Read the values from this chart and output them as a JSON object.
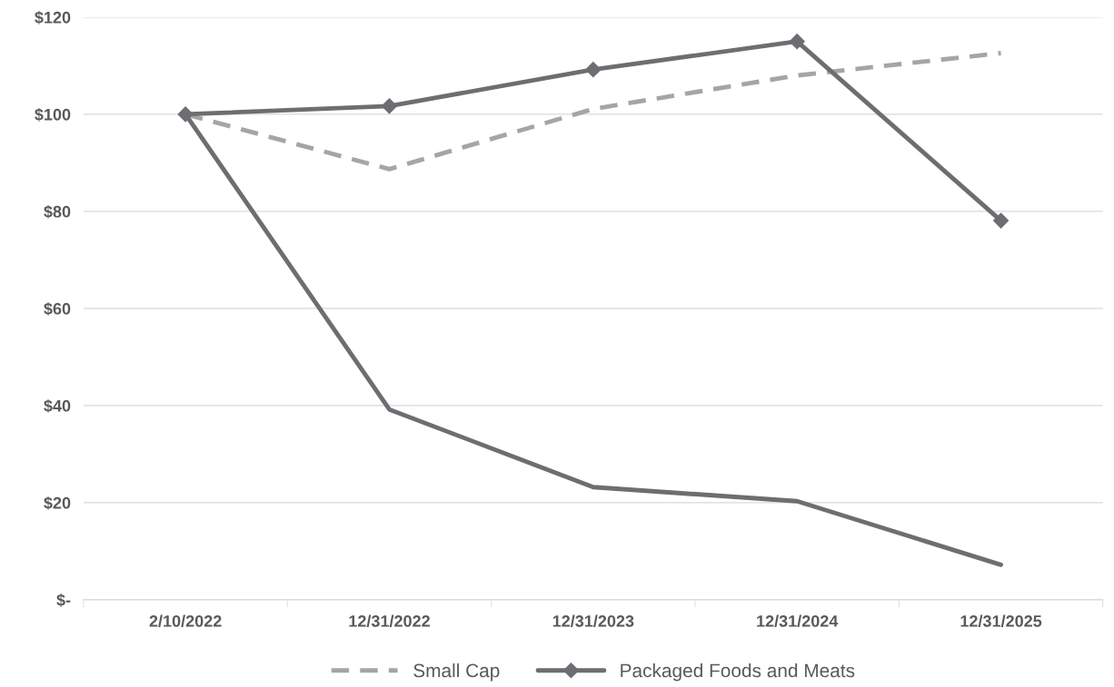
{
  "chart_data": {
    "type": "line",
    "categories": [
      "2/10/2022",
      "12/31/2022",
      "12/31/2023",
      "12/31/2024",
      "12/31/2025"
    ],
    "series": [
      {
        "color": "#6d6d72",
        "values": [
          100,
          39.2,
          23.2,
          20.3,
          7.2
        ],
        "line_style": "solid",
        "marker": "none"
      },
      {
        "name": "Small Cap",
        "color": "#a5a5a5",
        "values": [
          100,
          88.7,
          101.1,
          108,
          112.6
        ],
        "line_style": "dashed",
        "marker": "none"
      },
      {
        "name": "Packaged Foods and Meats",
        "color": "#6d6d72",
        "values": [
          100,
          101.7,
          109.2,
          115,
          78.1
        ],
        "line_style": "solid",
        "marker": "diamond"
      }
    ],
    "ylim": [
      0,
      120
    ],
    "yticks": [
      {
        "value": 0,
        "label": "$-"
      },
      {
        "value": 20,
        "label": "$20"
      },
      {
        "value": 40,
        "label": "$40"
      },
      {
        "value": 60,
        "label": "$60"
      },
      {
        "value": 80,
        "label": "$80"
      },
      {
        "value": 100,
        "label": "$100"
      },
      {
        "value": 120,
        "label": "$120"
      }
    ],
    "grid": "y",
    "legend": "bottom"
  }
}
